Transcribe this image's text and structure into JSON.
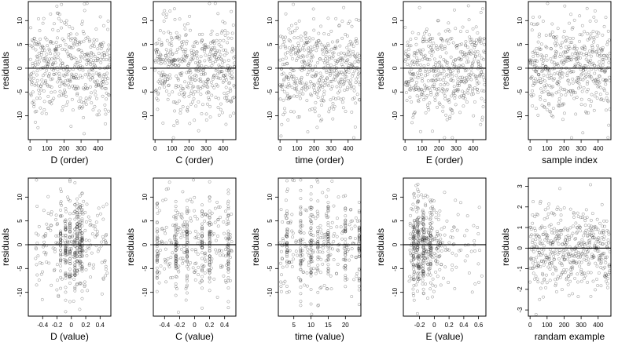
{
  "chart_data": [
    {
      "type": "scatter",
      "xlabel": "D (order)",
      "ylabel": "residuals",
      "xlim": [
        -10,
        475
      ],
      "ylim": [
        -15,
        14
      ],
      "xticks": [
        0,
        100,
        200,
        300,
        400
      ],
      "yticks": [
        -10,
        -5,
        0,
        5,
        10
      ],
      "n_points": 470,
      "x_kind": "index",
      "residual_sd": 5,
      "reference_y": 0
    },
    {
      "type": "scatter",
      "xlabel": "C (order)",
      "ylabel": "residuals",
      "xlim": [
        -10,
        475
      ],
      "ylim": [
        -15,
        14
      ],
      "xticks": [
        0,
        100,
        200,
        300,
        400
      ],
      "yticks": [
        -10,
        -5,
        0,
        5,
        10
      ],
      "n_points": 470,
      "x_kind": "index",
      "residual_sd": 5,
      "reference_y": 0
    },
    {
      "type": "scatter",
      "xlabel": "time (order)",
      "ylabel": "residuals",
      "xlim": [
        -10,
        475
      ],
      "ylim": [
        -15,
        14
      ],
      "xticks": [
        0,
        100,
        200,
        300,
        400
      ],
      "yticks": [
        -10,
        -5,
        0,
        5,
        10
      ],
      "n_points": 470,
      "x_kind": "index",
      "residual_sd": 5,
      "reference_y": 0
    },
    {
      "type": "scatter",
      "xlabel": "E (order)",
      "ylabel": "residuals",
      "xlim": [
        -10,
        475
      ],
      "ylim": [
        -15,
        14
      ],
      "xticks": [
        0,
        100,
        200,
        300,
        400
      ],
      "yticks": [
        -10,
        -5,
        0,
        5,
        10
      ],
      "n_points": 470,
      "x_kind": "index",
      "residual_sd": 5,
      "reference_y": 0
    },
    {
      "type": "scatter",
      "xlabel": "sample index",
      "ylabel": "residuals",
      "xlim": [
        -10,
        475
      ],
      "ylim": [
        -15,
        14
      ],
      "xticks": [
        0,
        100,
        200,
        300,
        400
      ],
      "yticks": [
        -10,
        -5,
        0,
        5,
        10
      ],
      "n_points": 470,
      "x_kind": "index",
      "residual_sd": 5,
      "reference_y": 0
    },
    {
      "type": "scatter",
      "xlabel": "D (value)",
      "ylabel": "residuals",
      "xlim": [
        -0.6,
        0.55
      ],
      "ylim": [
        -15,
        14
      ],
      "xticks": [
        -0.4,
        -0.2,
        0.0,
        0.2,
        0.4
      ],
      "yticks": [
        -10,
        -5,
        0,
        5,
        10
      ],
      "n_points": 470,
      "x_kind": "clustered",
      "x_range": [
        -0.5,
        0.5
      ],
      "x_clusters": [
        -0.15,
        -0.08,
        -0.02,
        0.05,
        0.08,
        0.12,
        0.15
      ],
      "residual_sd": 5,
      "reference_y": 0
    },
    {
      "type": "scatter",
      "xlabel": "C (value)",
      "ylabel": "residuals",
      "xlim": [
        -0.55,
        0.55
      ],
      "ylim": [
        -15,
        14
      ],
      "xticks": [
        -0.4,
        -0.2,
        0.0,
        0.2,
        0.4
      ],
      "yticks": [
        -10,
        -5,
        0,
        5,
        10
      ],
      "n_points": 470,
      "x_kind": "clustered",
      "x_range": [
        -0.5,
        0.5
      ],
      "x_clusters": [
        -0.5,
        -0.25,
        -0.1,
        0.1,
        0.2,
        0.45
      ],
      "residual_sd": 5,
      "reference_y": 0
    },
    {
      "type": "scatter",
      "xlabel": "time (value)",
      "ylabel": "residuals",
      "xlim": [
        0.5,
        24.5
      ],
      "ylim": [
        -15,
        14
      ],
      "xticks": [
        5,
        10,
        15,
        20
      ],
      "yticks": [
        -10,
        -5,
        0,
        5,
        10
      ],
      "n_points": 470,
      "x_kind": "clustered",
      "x_range": [
        1,
        24
      ],
      "x_clusters": [
        3,
        7,
        10,
        12,
        15,
        20,
        24
      ],
      "residual_sd": 5,
      "reference_y": 0
    },
    {
      "type": "scatter",
      "xlabel": "E (value)",
      "ylabel": "residuals",
      "xlim": [
        -0.42,
        0.7
      ],
      "ylim": [
        -15,
        14
      ],
      "xticks": [
        -0.2,
        0.0,
        0.2,
        0.4,
        0.6
      ],
      "yticks": [
        -10,
        -5,
        0,
        5,
        10
      ],
      "n_points": 470,
      "x_kind": "skewed",
      "x_range": [
        -0.35,
        0.65
      ],
      "x_clusters": [
        -0.28,
        -0.22,
        -0.15,
        -0.05
      ],
      "residual_sd": 5,
      "reference_y": 0
    },
    {
      "type": "scatter",
      "xlabel": "randam example",
      "ylabel": "residuals",
      "xlim": [
        -10,
        475
      ],
      "ylim": [
        -3.3,
        3.4
      ],
      "xticks": [
        0,
        100,
        200,
        300,
        400
      ],
      "yticks": [
        -3,
        -2,
        -1,
        0,
        1,
        2,
        3
      ],
      "n_points": 470,
      "x_kind": "index",
      "residual_sd": 1,
      "reference_y": 0
    }
  ]
}
